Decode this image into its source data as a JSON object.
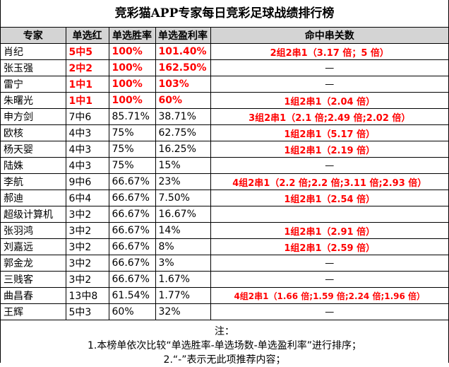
{
  "title": "竞彩猫APP专家每日竞彩足球战绩排行榜",
  "columns": [
    "专家",
    "单选红",
    "单选胜率",
    "单选盈利率",
    "命中串关数"
  ],
  "rows": [
    {
      "name": "肖纪",
      "record": "5中5",
      "win_rate": "100%",
      "profit_rate": "101.40%",
      "combo": "2组2串1（3.17 倍；5 倍）"
    },
    {
      "name": "张玉强",
      "record": "2中2",
      "win_rate": "100%",
      "profit_rate": "162.50%",
      "combo": "—"
    },
    {
      "name": "雷宁",
      "record": "1中1",
      "win_rate": "100%",
      "profit_rate": "103%",
      "combo": "—"
    },
    {
      "name": "朱曙光",
      "record": "1中1",
      "win_rate": "100%",
      "profit_rate": "60%",
      "combo": "1组2串1（2.04 倍）"
    },
    {
      "name": "申方剑",
      "record": "7中6",
      "win_rate": "85.71%",
      "profit_rate": "38.71%",
      "combo": "3组2串1（2.1 倍;2.49 倍;2.02 倍）"
    },
    {
      "name": "欧核",
      "record": "4中3",
      "win_rate": "75%",
      "profit_rate": "62.75%",
      "combo": "1组2串1（5.17 倍）"
    },
    {
      "name": "杨天婴",
      "record": "4中3",
      "win_rate": "75%",
      "profit_rate": "16.25%",
      "combo": "1组2串1（2.19 倍）"
    },
    {
      "name": "陆姝",
      "record": "4中3",
      "win_rate": "75%",
      "profit_rate": "15%",
      "combo": "—"
    },
    {
      "name": "李航",
      "record": "9中6",
      "win_rate": "66.67%",
      "profit_rate": "23%",
      "combo": "4组2串1（2.2 倍;2.2 倍;3.11 倍;2.93 倍）"
    },
    {
      "name": "郝迪",
      "record": "6中4",
      "win_rate": "66.67%",
      "profit_rate": "7.50%",
      "combo": "1组2串1（2.54 倍）"
    },
    {
      "name": "超级计算机",
      "record": "3中2",
      "win_rate": "66.67%",
      "profit_rate": "16.67%",
      "combo": ""
    },
    {
      "name": "张羽鸿",
      "record": "3中2",
      "win_rate": "66.67%",
      "profit_rate": "14%",
      "combo": "1组2串1（2.91 倍）"
    },
    {
      "name": "刘嘉远",
      "record": "3中2",
      "win_rate": "66.67%",
      "profit_rate": "8%",
      "combo": "1组2串1（2.59 倍）"
    },
    {
      "name": "郭金龙",
      "record": "3中2",
      "win_rate": "66.67%",
      "profit_rate": "3%",
      "combo": "—"
    },
    {
      "name": "三贱客",
      "record": "3中2",
      "win_rate": "66.67%",
      "profit_rate": "1.67%",
      "combo": "—"
    },
    {
      "name": "曲昌春",
      "record": "13中8",
      "win_rate": "61.54%",
      "profit_rate": "1.77%",
      "combo": "4组2串1（1.66 倍;1.59 倍;2.24 倍;1.96 倍）"
    },
    {
      "name": "王辉",
      "record": "5中3",
      "win_rate": "60%",
      "profit_rate": "32%",
      "combo": "—"
    }
  ],
  "notes": {
    "heading": "注：",
    "line1": "1.本榜单依次比较“单选胜率-单选场数-单选盈利率”进行排序；",
    "line2": "2.“-”表示无此项推荐内容；"
  }
}
